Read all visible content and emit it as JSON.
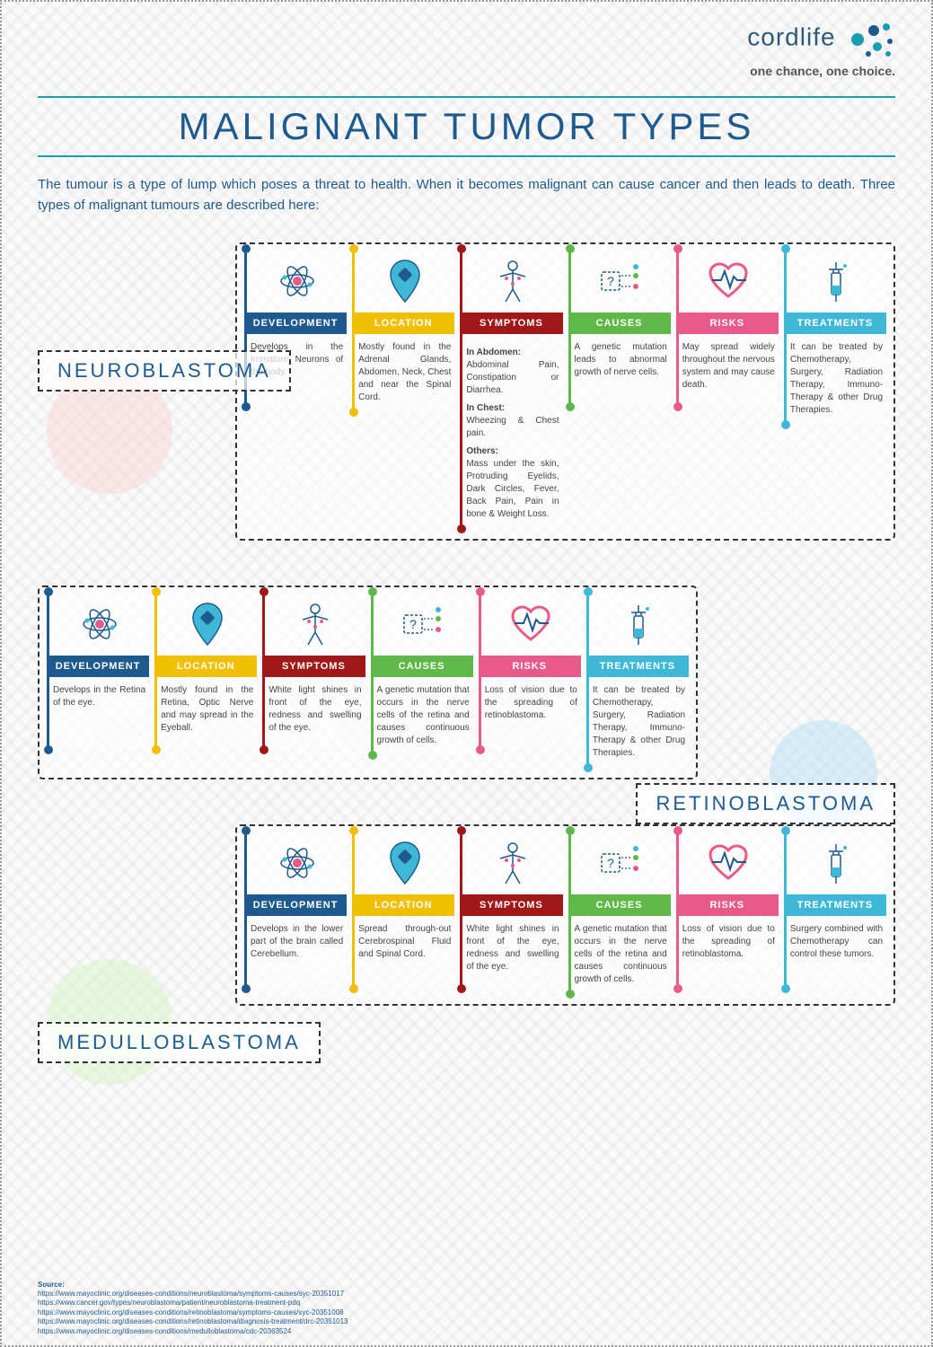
{
  "brand": {
    "name": "cordlife",
    "tagline_1": "one chance,",
    "tagline_2": " one choice."
  },
  "title": "MALIGNANT TUMOR TYPES",
  "intro": "The tumour is a type of lump which poses a threat to health. When it becomes malignant can cause cancer and then leads to death. Three types of malignant tumours are described here:",
  "colors": {
    "development": "#1e5a8e",
    "location": "#f0c000",
    "symptoms": "#a01818",
    "causes": "#5fb848",
    "risks": "#e85a8a",
    "treatments": "#3fb8d8"
  },
  "card_headers": {
    "development": "DEVELOPMENT",
    "location": "LOCATION",
    "symptoms": "SYMPTOMS",
    "causes": "CAUSES",
    "risks": "RISKS",
    "treatments": "TREATMENTS"
  },
  "tumors": [
    {
      "name": "NEUROBLASTOMA",
      "align": "right",
      "circle": "pink",
      "development": "Develops in the Immature Neurons of the body.",
      "location": "Mostly found in the Adrenal Glands, Abdomen, Neck, Chest and near the Spinal Cord.",
      "symptoms_blocks": [
        {
          "head": "In Abdomen:",
          "text": "Abdominal Pain, Constipation or Diarrhea."
        },
        {
          "head": "In Chest:",
          "text": "Wheezing & Chest pain."
        },
        {
          "head": "Others:",
          "text": "Mass under the skin, Protruding Eyelids, Dark Circles, Fever, Back Pain, Pain in bone & Weight Loss."
        }
      ],
      "causes": "A genetic mutation leads to abnormal growth of nerve cells.",
      "risks": "May spread widely throughout the nervous system and may cause death.",
      "treatments": "It can be treated by Chemotherapy, Surgery, Radiation Therapy, Immuno-Therapy & other Drug Therapies."
    },
    {
      "name": "RETINOBLASTOMA",
      "align": "left",
      "circle": "blue",
      "development": "Develops in the Retina of the eye.",
      "location": "Mostly found in the Retina, Optic Nerve and may spread in the Eyeball.",
      "symptoms": "White light shines in front of the eye, redness and swelling of the eye.",
      "causes": "A genetic mutation that occurs in the nerve cells of the retina and causes continuous growth of cells.",
      "risks": "Loss of vision due to the spreading of retinoblastoma.",
      "treatments": "It can be treated by Chemotherapy, Surgery, Radiation Therapy, Immuno-Therapy & other Drug Therapies."
    },
    {
      "name": "MEDULLOBLASTOMA",
      "align": "right",
      "circle": "green",
      "development": "Develops in the lower part of the brain called Cerebellum.",
      "location": "Spread through-out Cerebrospinal Fluid and Spinal Cord.",
      "symptoms": "White light shines in front of the eye, redness and swelling of the eye.",
      "causes": "A genetic mutation that occurs in the nerve cells of the retina and causes continuous growth of cells.",
      "risks": "Loss of vision due to the spreading of retinoblastoma.",
      "treatments": "Surgery combined with Chemotherapy can control these tumors."
    }
  ],
  "sources": {
    "title": "Source:",
    "items": [
      "https://www.mayoclinic.org/diseases-conditions/neuroblastoma/symptoms-causes/syc-20351017",
      "https://www.cancer.gov/types/neuroblastoma/patient/neuroblastoma-treatment-pdq",
      "https://www.mayoclinic.org/diseases-conditions/retinoblastoma/symptoms-causes/syc-20351008",
      "https://www.mayoclinic.org/diseases-conditions/retinoblastoma/diagnosis-treatment/drc-20351013",
      "https://www.mayoclinic.org/diseases-conditions/medulloblastoma/cdc-20363524"
    ]
  }
}
